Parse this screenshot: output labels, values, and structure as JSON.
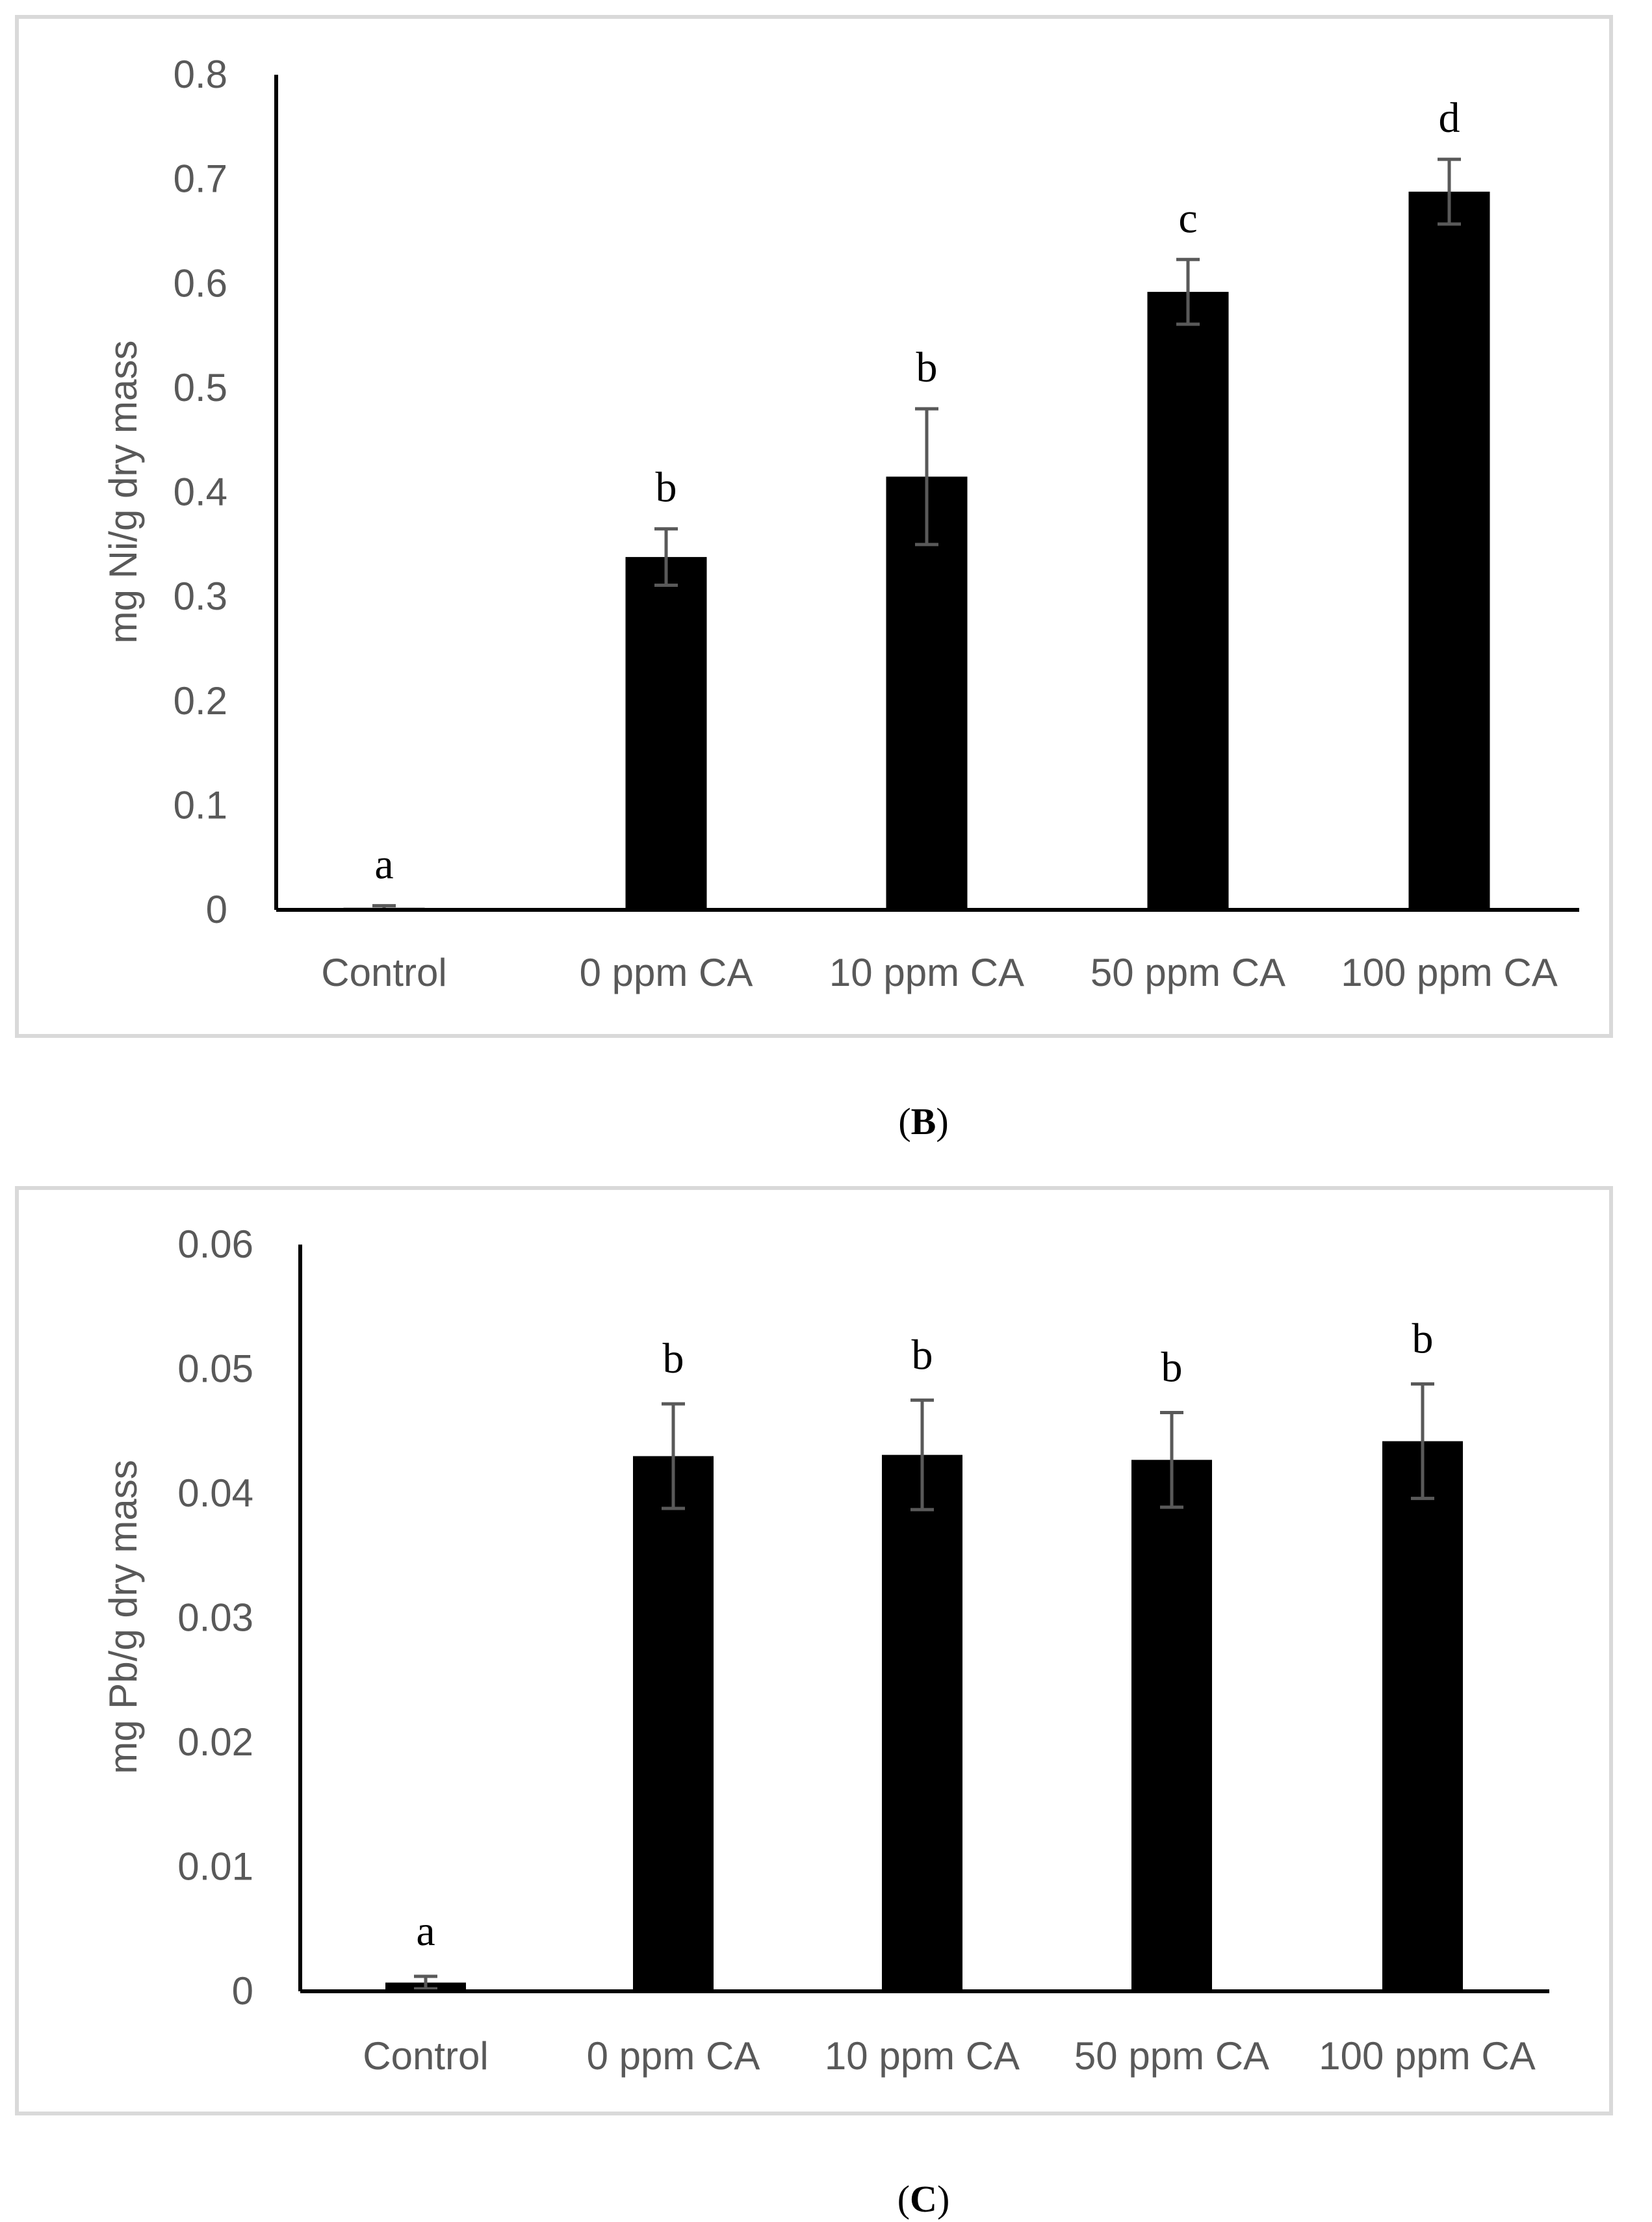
{
  "colors": {
    "bar": "#000000",
    "axis": "#000000",
    "error_bar": "#595959",
    "frame": "#d9d9d9",
    "tick_text": "#595959"
  },
  "chart_data": [
    {
      "type": "bar",
      "panel": "B",
      "caption": {
        "open": "(",
        "letter": "B",
        "close": ")"
      },
      "title": "",
      "xlabel": "",
      "ylabel": "mg Ni/g dry mass",
      "ylim": [
        0,
        0.8
      ],
      "yticks": [
        "0",
        "0.1",
        "0.2",
        "0.3",
        "0.4",
        "0.5",
        "0.6",
        "0.7",
        "0.8"
      ],
      "ytick_values": [
        0,
        0.1,
        0.2,
        0.3,
        0.4,
        0.5,
        0.6,
        0.7,
        0.8
      ],
      "grid": false,
      "categories": [
        "Control",
        "0 ppm CA",
        "10 ppm CA",
        "50 ppm CA",
        "100 ppm CA"
      ],
      "values": [
        0.002,
        0.338,
        0.415,
        0.592,
        0.688
      ],
      "errors": [
        0.002,
        0.027,
        0.065,
        0.031,
        0.031
      ],
      "significance": [
        "a",
        "b",
        "b",
        "c",
        "d"
      ]
    },
    {
      "type": "bar",
      "panel": "C",
      "caption": {
        "open": "(",
        "letter": "C",
        "close": ")"
      },
      "title": "",
      "xlabel": "",
      "ylabel": "mg Pb/g dry mass",
      "ylim": [
        0,
        0.06
      ],
      "yticks": [
        "0",
        "0.01",
        "0.02",
        "0.03",
        "0.04",
        "0.05",
        "0.06"
      ],
      "ytick_values": [
        0,
        0.01,
        0.02,
        0.03,
        0.04,
        0.05,
        0.06
      ],
      "grid": false,
      "categories": [
        "Control",
        "0 ppm CA",
        "10 ppm CA",
        "50 ppm CA",
        "100 ppm CA"
      ],
      "values": [
        0.0007,
        0.043,
        0.0431,
        0.0427,
        0.0442
      ],
      "errors": [
        0.0005,
        0.0042,
        0.0044,
        0.0038,
        0.0046
      ],
      "significance": [
        "a",
        "b",
        "b",
        "b",
        "b"
      ]
    }
  ]
}
